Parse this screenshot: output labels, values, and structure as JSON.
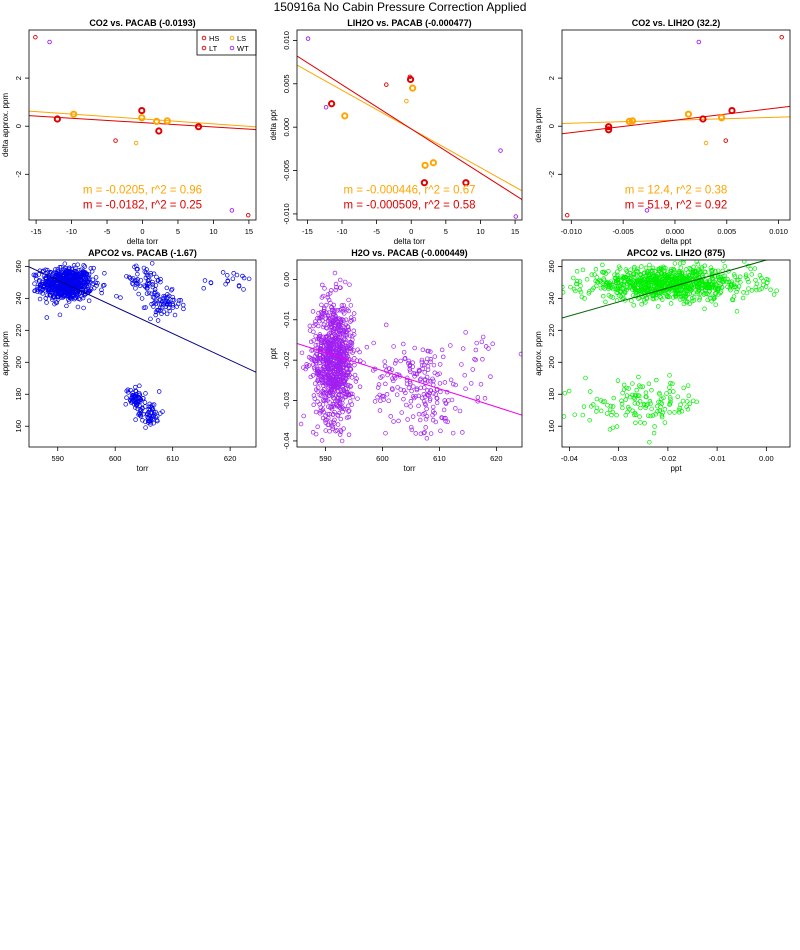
{
  "page_title": "150916a   No Cabin Pressure Correction Applied",
  "colors": {
    "HS": "#e00000",
    "LS": "#ffa500",
    "LT": "#e00000",
    "WT": "#a020f0",
    "blue": "#0000ee",
    "purple": "#a020f0",
    "green": "#00ee00",
    "navy": "#000080",
    "magenta": "#ee00ee",
    "darkgreen": "#006400"
  },
  "chart_data": [
    {
      "type": "scatter",
      "title": "CO2 vs. PACAB (-0.0193)",
      "xlabel": "delta torr",
      "ylabel": "delta approx. ppm",
      "xlim": [
        -16,
        16
      ],
      "ylim": [
        -3.9,
        4.0
      ],
      "xticks": [
        -15,
        -10,
        -5,
        0,
        5,
        10,
        15
      ],
      "xtick_labels": [
        "-15",
        "-10",
        "-5",
        "0",
        "5",
        "10",
        "15"
      ],
      "yticks": [
        -2,
        0,
        2
      ],
      "ytick_labels": [
        "-2",
        "0",
        "2"
      ],
      "legend": {
        "position": "top-right",
        "items": [
          "HS",
          "LS",
          "LT",
          "WT"
        ],
        "colors": [
          "#e00000",
          "#ffa500",
          "#e00000",
          "#a020f0"
        ]
      },
      "series": [
        {
          "name": "HS",
          "color": "#e00000",
          "bold": true,
          "points": [
            [
              -12,
              0.3
            ],
            [
              -0.1,
              0.65
            ],
            [
              2.3,
              -0.2
            ],
            [
              7.9,
              -0.02
            ]
          ]
        },
        {
          "name": "LS",
          "color": "#ffa500",
          "bold": true,
          "points": [
            [
              -9.7,
              0.5
            ],
            [
              -0.1,
              0.35
            ],
            [
              2,
              0.2
            ],
            [
              3.5,
              0.22
            ]
          ]
        },
        {
          "name": "LT",
          "color": "#e00000",
          "bold": false,
          "points": [
            [
              -15.1,
              3.7
            ],
            [
              -3.8,
              -0.6
            ],
            [
              14.9,
              -3.7
            ]
          ]
        },
        {
          "name": "WT",
          "color": "#a020f0",
          "bold": false,
          "points": [
            [
              -13.1,
              3.5
            ],
            [
              12.6,
              -3.5
            ]
          ]
        },
        {
          "name": "LS-extra",
          "color": "#ffa500",
          "bold": false,
          "points": [
            [
              -0.9,
              -0.7
            ]
          ]
        }
      ],
      "fits": [
        {
          "color": "#ffa500",
          "slope": -0.0205,
          "intercept": 0.3
        },
        {
          "color": "#e00000",
          "slope": -0.0182,
          "intercept": 0.15
        }
      ],
      "annotations": [
        {
          "text": "m = -0.0205, r^2 = 0.96",
          "color": "#ffa500"
        },
        {
          "text": "m = -0.0182, r^2 = 0.25",
          "color": "#e00000"
        }
      ]
    },
    {
      "type": "scatter",
      "title": "LIH2O vs. PACAB (-0.000477)",
      "xlabel": "delta torr",
      "ylabel": "delta ppt",
      "xlim": [
        -16.5,
        16
      ],
      "ylim": [
        -0.0107,
        0.0112
      ],
      "xticks": [
        -15,
        -10,
        -5,
        0,
        5,
        10,
        15
      ],
      "xtick_labels": [
        "-15",
        "-10",
        "-5",
        "0",
        "5",
        "10",
        "15"
      ],
      "yticks": [
        -0.01,
        -0.005,
        0,
        0.005,
        0.01
      ],
      "ytick_labels": [
        "-0.010",
        "-0.005",
        "0.000",
        "0.005",
        "0.010"
      ],
      "series": [
        {
          "name": "HS",
          "color": "#e00000",
          "bold": true,
          "points": [
            [
              -11.5,
              0.0027
            ],
            [
              -0.1,
              0.0055
            ],
            [
              1.9,
              -0.0064
            ],
            [
              7.9,
              -0.0064
            ]
          ]
        },
        {
          "name": "LS",
          "color": "#ffa500",
          "bold": true,
          "points": [
            [
              -9.6,
              0.0013
            ],
            [
              0.2,
              0.0045
            ],
            [
              2,
              -0.0044
            ],
            [
              3.2,
              -0.0041
            ]
          ]
        },
        {
          "name": "LT",
          "color": "#e00000",
          "bold": false,
          "points": [
            [
              -3.6,
              0.0049
            ],
            [
              -0.2,
              0.0058
            ]
          ]
        },
        {
          "name": "WT",
          "color": "#a020f0",
          "bold": false,
          "points": [
            [
              -14.9,
              0.0102
            ],
            [
              -12.3,
              0.0023
            ],
            [
              12.9,
              -0.0027
            ],
            [
              15.1,
              -0.0103
            ]
          ]
        },
        {
          "name": "LS-extra",
          "color": "#ffa500",
          "bold": false,
          "points": [
            [
              -0.7,
              0.003
            ]
          ]
        }
      ],
      "fits": [
        {
          "color": "#ffa500",
          "slope": -0.000446,
          "intercept": -0.0002
        },
        {
          "color": "#e00000",
          "slope": -0.000509,
          "intercept": -0.0002
        }
      ],
      "annotations": [
        {
          "text": "m = -0.000446, r^2 = 0.67",
          "color": "#ffa500"
        },
        {
          "text": "m = -0.000509, r^2 = 0.58",
          "color": "#e00000"
        }
      ]
    },
    {
      "type": "scatter",
      "title": "CO2 vs. LIH2O (32.2)",
      "xlabel": "delta ppt",
      "ylabel": "delta ppm",
      "xlim": [
        -0.0109,
        0.0111
      ],
      "ylim": [
        -3.9,
        4.0
      ],
      "xticks": [
        -0.01,
        -0.005,
        0,
        0.005,
        0.01
      ],
      "xtick_labels": [
        "-0.010",
        "-0.005",
        "0.000",
        "0.005",
        "0.010"
      ],
      "yticks": [
        -2,
        0,
        2
      ],
      "ytick_labels": [
        "-2",
        "0",
        "2"
      ],
      "series": [
        {
          "name": "HS",
          "color": "#e00000",
          "bold": true,
          "points": [
            [
              -0.0064,
              -0.02
            ],
            [
              -0.0064,
              -0.15
            ],
            [
              0.0027,
              0.3
            ],
            [
              0.0055,
              0.65
            ]
          ]
        },
        {
          "name": "LS",
          "color": "#ffa500",
          "bold": true,
          "points": [
            [
              -0.0044,
              0.2
            ],
            [
              -0.0041,
              0.22
            ],
            [
              0.0013,
              0.5
            ],
            [
              0.0045,
              0.35
            ]
          ]
        },
        {
          "name": "LT",
          "color": "#e00000",
          "bold": false,
          "points": [
            [
              -0.0104,
              -3.7
            ],
            [
              0.0103,
              3.7
            ],
            [
              0.0049,
              -0.6
            ]
          ]
        },
        {
          "name": "WT",
          "color": "#a020f0",
          "bold": false,
          "points": [
            [
              -0.0027,
              -3.5
            ],
            [
              0.0023,
              3.5
            ]
          ]
        },
        {
          "name": "LS-extra",
          "color": "#ffa500",
          "bold": false,
          "points": [
            [
              0.003,
              -0.7
            ]
          ]
        }
      ],
      "fits": [
        {
          "color": "#ffa500",
          "slope": 12.4,
          "intercept": 0.25
        },
        {
          "color": "#e00000",
          "slope": 51.9,
          "intercept": 0.25
        }
      ],
      "annotations": [
        {
          "text": "m = 12.4, r^2 = 0.38",
          "color": "#ffa500"
        },
        {
          "text": "m = 51.9, r^2 = 0.92",
          "color": "#e00000"
        }
      ]
    },
    {
      "type": "scatter",
      "title": "APCO2 vs. PACAB (-1.67)",
      "xlabel": "torr",
      "ylabel": "approx. ppm",
      "xlim": [
        585,
        624.5
      ],
      "ylim": [
        147,
        264
      ],
      "xticks": [
        590,
        600,
        610,
        620
      ],
      "xtick_labels": [
        "590",
        "600",
        "610",
        "620"
      ],
      "yticks": [
        160,
        180,
        200,
        220,
        240,
        260
      ],
      "ytick_labels": [
        "160",
        "180",
        "200",
        "220",
        "240",
        "260"
      ],
      "color": "#0000ee",
      "clusters": [
        {
          "cx": 591.5,
          "cy": 249,
          "sx": 2.2,
          "sy": 5,
          "n": 700
        },
        {
          "cx": 604.8,
          "cy": 251,
          "sx": 2.2,
          "sy": 5,
          "n": 60
        },
        {
          "cx": 608.5,
          "cy": 236,
          "sx": 1.5,
          "sy": 4,
          "n": 70
        },
        {
          "cx": 603.5,
          "cy": 178,
          "sx": 0.8,
          "sy": 4,
          "n": 60
        },
        {
          "cx": 606,
          "cy": 168,
          "sx": 1.0,
          "sy": 4,
          "n": 60
        },
        {
          "cx": 620,
          "cy": 251,
          "sx": 2.5,
          "sy": 3,
          "n": 20
        }
      ],
      "fit": {
        "color": "#000080",
        "slope": -1.67,
        "intercept": 1236.7
      }
    },
    {
      "type": "scatter",
      "title": "H2O vs. PACAB (-0.000449)",
      "xlabel": "torr",
      "ylabel": "ppt",
      "xlim": [
        585,
        624.5
      ],
      "ylim": [
        -0.0415,
        0.0048
      ],
      "xticks": [
        590,
        600,
        610,
        620
      ],
      "xtick_labels": [
        "590",
        "600",
        "610",
        "620"
      ],
      "yticks": [
        -0.04,
        -0.03,
        -0.02,
        -0.01,
        0
      ],
      "ytick_labels": [
        "-0.04",
        "-0.03",
        "-0.02",
        "-0.01",
        "0.00"
      ],
      "color": "#a020f0",
      "clusters": [
        {
          "cx": 591.5,
          "cy": -0.02,
          "sx": 1.8,
          "sy": 0.0075,
          "n": 900
        },
        {
          "cx": 603.5,
          "cy": -0.025,
          "sx": 2.5,
          "sy": 0.005,
          "n": 90
        },
        {
          "cx": 608.5,
          "cy": -0.028,
          "sx": 2.2,
          "sy": 0.006,
          "n": 110
        },
        {
          "cx": 616,
          "cy": -0.022,
          "sx": 3,
          "sy": 0.006,
          "n": 25
        }
      ],
      "fit": {
        "color": "#ee00ee",
        "slope": -0.000449,
        "intercept": 0.2468
      }
    },
    {
      "type": "scatter",
      "title": "APCO2 vs. LIH2O (875)",
      "xlabel": "ppt",
      "ylabel": "approx. ppm",
      "xlim": [
        -0.0415,
        0.0048
      ],
      "ylim": [
        147,
        264
      ],
      "xticks": [
        -0.04,
        -0.03,
        -0.02,
        -0.01,
        0
      ],
      "xtick_labels": [
        "-0.04",
        "-0.03",
        "-0.02",
        "-0.01",
        "0.00"
      ],
      "yticks": [
        160,
        180,
        200,
        220,
        240,
        260
      ],
      "ytick_labels": [
        "160",
        "180",
        "200",
        "220",
        "240",
        "260"
      ],
      "color": "#00ee00",
      "clusters": [
        {
          "cx": -0.02,
          "cy": 249,
          "sx": 0.0085,
          "sy": 5,
          "n": 900
        },
        {
          "cx": -0.025,
          "cy": 174,
          "sx": 0.006,
          "sy": 7,
          "n": 140
        }
      ],
      "fit": {
        "color": "#006400",
        "slope": 875,
        "intercept": 264
      }
    }
  ]
}
